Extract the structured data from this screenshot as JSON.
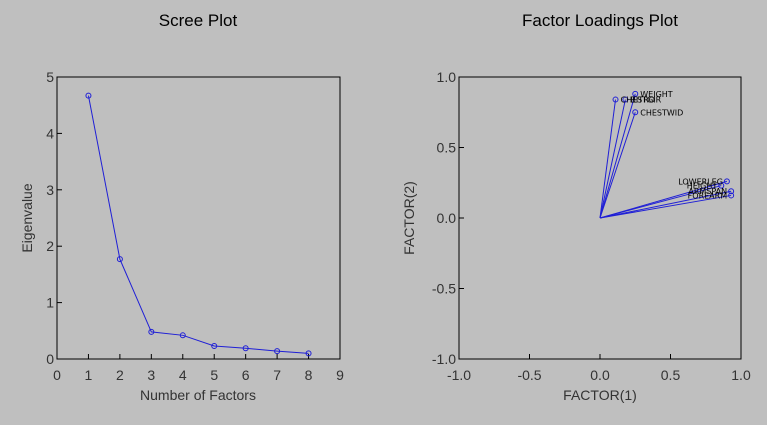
{
  "colors": {
    "background": "#bfbfbf",
    "series": "#1f1fd6",
    "axis": "#000000"
  },
  "chart_data": [
    {
      "type": "line",
      "title": "Scree Plot",
      "xlabel": "Number of Factors",
      "ylabel": "Eigenvalue",
      "xlim": [
        0,
        9
      ],
      "ylim": [
        0,
        5
      ],
      "xticks": [
        0,
        1,
        2,
        3,
        4,
        5,
        6,
        7,
        8,
        9
      ],
      "yticks": [
        0,
        1,
        2,
        3,
        4,
        5
      ],
      "grid": false,
      "x": [
        1,
        2,
        3,
        4,
        5,
        6,
        7,
        8
      ],
      "y": [
        4.67,
        1.77,
        0.48,
        0.42,
        0.23,
        0.19,
        0.14,
        0.1
      ]
    },
    {
      "type": "scatter",
      "title": "Factor Loadings Plot",
      "xlabel": "FACTOR(1)",
      "ylabel": "FACTOR(2)",
      "xlim": [
        -1.0,
        1.0
      ],
      "ylim": [
        -1.0,
        1.0
      ],
      "xticks": [
        "-1.0",
        "-0.5",
        "0.0",
        "0.5",
        "1.0"
      ],
      "yticks": [
        "-1.0",
        "-0.5",
        "0.0",
        "0.5",
        "1.0"
      ],
      "grid": false,
      "vectors_from_origin": true,
      "points": [
        {
          "label": "WEIGHT",
          "x": 0.25,
          "y": 0.88
        },
        {
          "label": "CHESTGIR",
          "x": 0.11,
          "y": 0.84
        },
        {
          "label": "BITRO",
          "x": 0.18,
          "y": 0.84
        },
        {
          "label": "CHESTWID",
          "x": 0.25,
          "y": 0.75
        },
        {
          "label": "LOWERLEG",
          "x": 0.9,
          "y": 0.26
        },
        {
          "label": "HEIGHT",
          "x": 0.86,
          "y": 0.23
        },
        {
          "label": "ARMSPAN",
          "x": 0.93,
          "y": 0.19
        },
        {
          "label": "FOREARM",
          "x": 0.93,
          "y": 0.16
        }
      ]
    }
  ]
}
